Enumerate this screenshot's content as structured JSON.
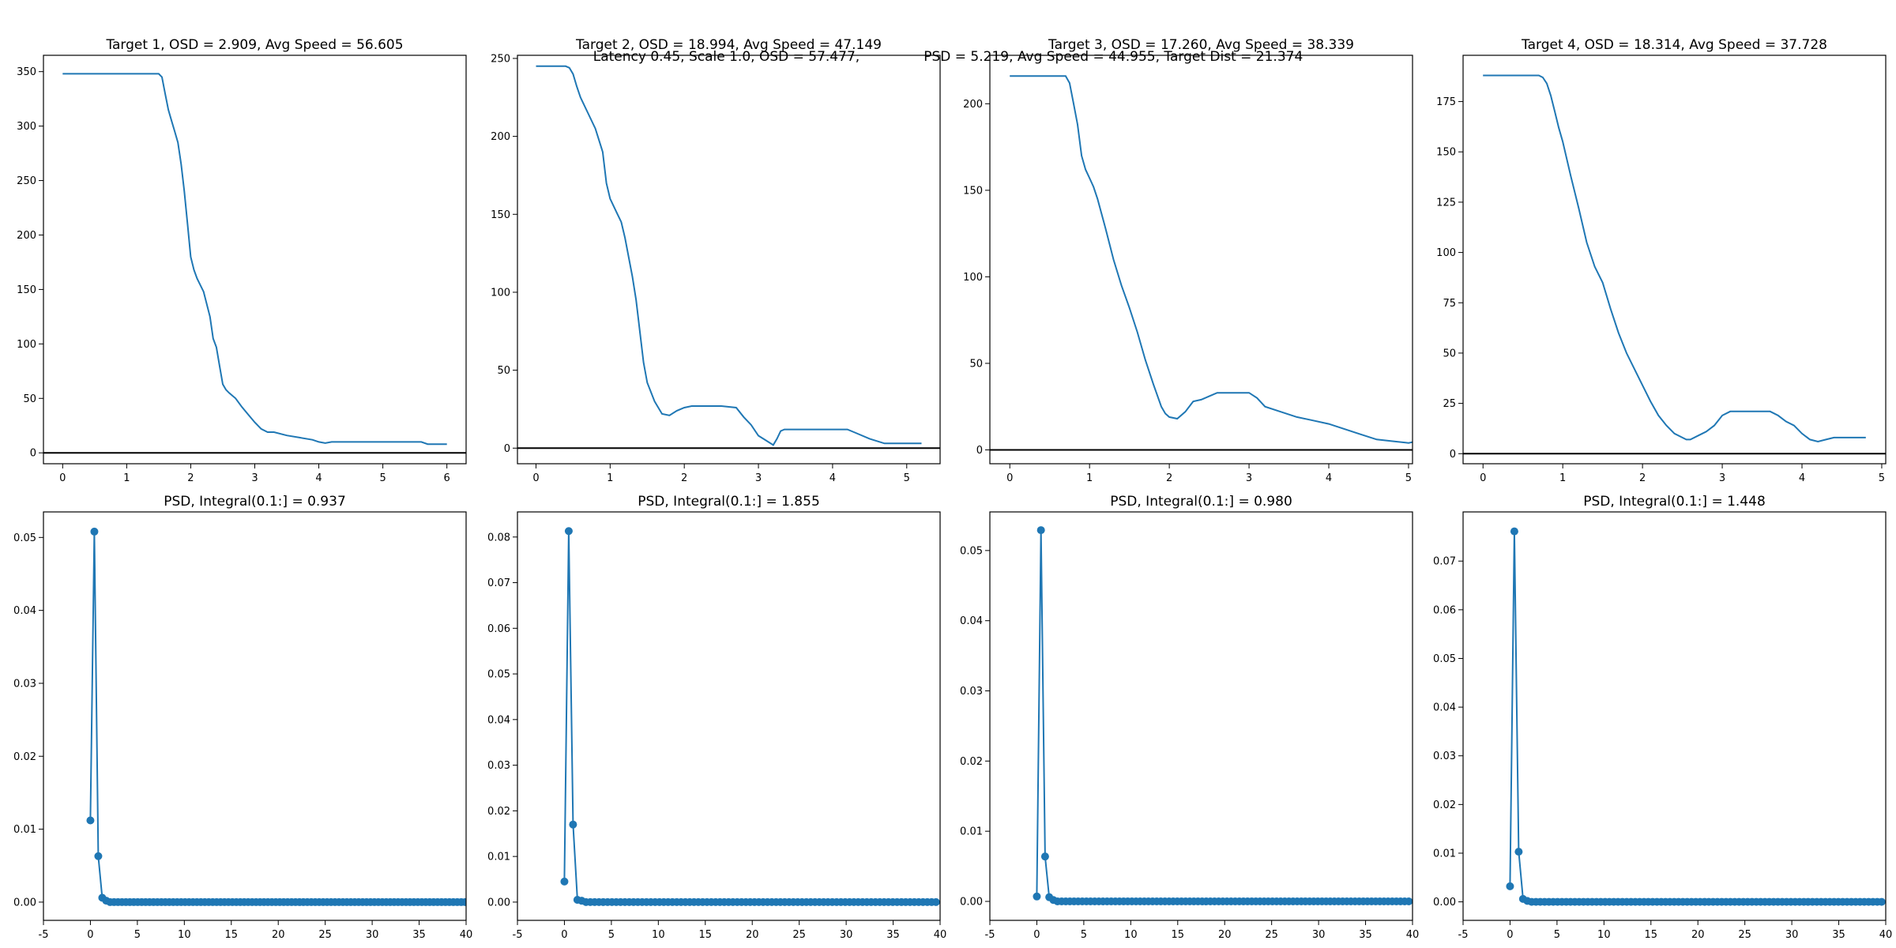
{
  "suptitle": {
    "line1": "Latency 0.45, Scale 1.0, OSD = 57.477,               PSD = 5.219, Avg Speed = 44.955, Target Dist = 21.374",
    "line2": ""
  },
  "colors": {
    "series": "#1f77b4",
    "zero_line": "#000000",
    "axes": "#000000",
    "background": "#ffffff"
  },
  "chart_data": [
    {
      "type": "line",
      "title": "Target 1, OSD = 2.909, Avg Speed = 56.605",
      "xlim": [
        -0.3,
        6.3
      ],
      "ylim": [
        -10,
        365
      ],
      "xticks": [
        0,
        1,
        2,
        3,
        4,
        5,
        6
      ],
      "yticks": [
        0,
        50,
        100,
        150,
        200,
        250,
        300,
        350
      ],
      "hline": 0,
      "series": [
        {
          "x": [
            0,
            0.3,
            0.6,
            0.9,
            1.2,
            1.5,
            1.55,
            1.6,
            1.65,
            1.7,
            1.75,
            1.8,
            1.85,
            1.9,
            1.95,
            2.0,
            2.05,
            2.1,
            2.2,
            2.3,
            2.35,
            2.4,
            2.45,
            2.5,
            2.55,
            2.6,
            2.7,
            2.8,
            2.9,
            3.0,
            3.1,
            3.2,
            3.3,
            3.5,
            3.7,
            3.9,
            4.0,
            4.1,
            4.2,
            4.4,
            4.7,
            5.0,
            5.3,
            5.6,
            5.7,
            6.0
          ],
          "y": [
            348,
            348,
            348,
            348,
            348,
            348,
            345,
            330,
            315,
            305,
            295,
            285,
            265,
            240,
            210,
            180,
            168,
            160,
            148,
            125,
            105,
            97,
            80,
            63,
            58,
            55,
            50,
            42,
            35,
            28,
            22,
            19,
            19,
            16,
            14,
            12,
            10,
            9,
            10,
            10,
            10,
            10,
            10,
            10,
            8,
            8
          ]
        }
      ]
    },
    {
      "type": "line",
      "title": "Target 2, OSD = 18.994, Avg Speed = 47.149",
      "xlim": [
        -0.25,
        5.45
      ],
      "ylim": [
        -10,
        252
      ],
      "xticks": [
        0,
        1,
        2,
        3,
        4,
        5
      ],
      "yticks": [
        0,
        50,
        100,
        150,
        200,
        250
      ],
      "hline": 0,
      "series": [
        {
          "x": [
            0,
            0.2,
            0.4,
            0.45,
            0.5,
            0.55,
            0.6,
            0.7,
            0.8,
            0.9,
            0.95,
            1.0,
            1.05,
            1.1,
            1.15,
            1.2,
            1.3,
            1.35,
            1.4,
            1.45,
            1.5,
            1.6,
            1.7,
            1.8,
            1.9,
            2.0,
            2.1,
            2.3,
            2.5,
            2.7,
            2.8,
            2.9,
            3.0,
            3.1,
            3.2,
            3.25,
            3.3,
            3.35,
            3.6,
            3.9,
            4.2,
            4.3,
            4.5,
            4.7,
            5.0,
            5.2
          ],
          "y": [
            245,
            245,
            245,
            244,
            240,
            232,
            225,
            215,
            205,
            190,
            170,
            160,
            155,
            150,
            145,
            135,
            110,
            95,
            75,
            55,
            42,
            30,
            22,
            21,
            24,
            26,
            27,
            27,
            27,
            26,
            20,
            15,
            8,
            5,
            2,
            6,
            11,
            12,
            12,
            12,
            12,
            10,
            6,
            3,
            3,
            3
          ]
        }
      ]
    },
    {
      "type": "line",
      "title": "Target 3, OSD = 17.260, Avg Speed = 38.339",
      "xlim": [
        -0.25,
        5.05
      ],
      "ylim": [
        -8,
        228
      ],
      "xticks": [
        0,
        1,
        2,
        3,
        4,
        5
      ],
      "yticks": [
        0,
        50,
        100,
        150,
        200
      ],
      "hline": 0,
      "series": [
        {
          "x": [
            0,
            0.3,
            0.6,
            0.7,
            0.75,
            0.8,
            0.85,
            0.9,
            0.95,
            1.0,
            1.05,
            1.1,
            1.2,
            1.3,
            1.4,
            1.5,
            1.6,
            1.7,
            1.8,
            1.9,
            1.95,
            2.0,
            2.1,
            2.2,
            2.3,
            2.4,
            2.5,
            2.6,
            2.8,
            3.0,
            3.1,
            3.2,
            3.4,
            3.6,
            3.8,
            4.0,
            4.2,
            4.4,
            4.6,
            4.8,
            5.0,
            5.1,
            5.5
          ],
          "y": [
            216,
            216,
            216,
            216,
            212,
            200,
            188,
            170,
            162,
            157,
            152,
            145,
            128,
            110,
            95,
            82,
            68,
            52,
            38,
            25,
            21,
            19,
            18,
            22,
            28,
            29,
            31,
            33,
            33,
            33,
            30,
            25,
            22,
            19,
            17,
            15,
            12,
            9,
            6,
            5,
            4,
            5,
            5
          ]
        }
      ]
    },
    {
      "type": "line",
      "title": "Target 4, OSD = 18.314, Avg Speed = 37.728",
      "xlim": [
        -0.25,
        5.05
      ],
      "ylim": [
        -5,
        198
      ],
      "xticks": [
        0,
        1,
        2,
        3,
        4,
        5
      ],
      "yticks": [
        0,
        25,
        50,
        75,
        100,
        125,
        150,
        175
      ],
      "hline": 0,
      "series": [
        {
          "x": [
            0,
            0.3,
            0.6,
            0.7,
            0.75,
            0.8,
            0.85,
            0.9,
            0.95,
            1.0,
            1.1,
            1.2,
            1.3,
            1.4,
            1.5,
            1.6,
            1.7,
            1.8,
            1.9,
            2.0,
            2.1,
            2.2,
            2.3,
            2.4,
            2.5,
            2.55,
            2.6,
            2.7,
            2.8,
            2.9,
            3.0,
            3.1,
            3.2,
            3.4,
            3.6,
            3.7,
            3.8,
            3.9,
            4.0,
            4.1,
            4.2,
            4.3,
            4.4,
            4.8
          ],
          "y": [
            188,
            188,
            188,
            188,
            187,
            184,
            178,
            170,
            162,
            155,
            138,
            122,
            105,
            93,
            85,
            72,
            60,
            50,
            42,
            34,
            26,
            19,
            14,
            10,
            8,
            7,
            7,
            9,
            11,
            14,
            19,
            21,
            21,
            21,
            21,
            19,
            16,
            14,
            10,
            7,
            6,
            7,
            8,
            8
          ]
        }
      ]
    },
    {
      "type": "line",
      "title": "PSD, Integral(0.1:] = 0.937",
      "xlim": [
        -5,
        40
      ],
      "ylim": [
        -0.0025,
        0.0535
      ],
      "xticks": [
        -5,
        0,
        5,
        10,
        15,
        20,
        25,
        30,
        35,
        40
      ],
      "yticks": [
        0.0,
        0.01,
        0.02,
        0.03,
        0.04,
        0.05
      ],
      "ytick_decimals": 2,
      "series": [
        {
          "x": [
            0,
            0.42,
            0.84,
            1.26,
            1.68
          ],
          "y": [
            0.0112,
            0.0508,
            0.0063,
            0.0006,
            0.0002
          ]
        }
      ],
      "tail": {
        "start": 2.1,
        "step": 0.42,
        "end": 40,
        "value": 0
      }
    },
    {
      "type": "line",
      "title": "PSD, Integral(0.1:] = 1.855",
      "xlim": [
        -5,
        40
      ],
      "ylim": [
        -0.004,
        0.0855
      ],
      "xticks": [
        -5,
        0,
        5,
        10,
        15,
        20,
        25,
        30,
        35,
        40
      ],
      "yticks": [
        0.0,
        0.01,
        0.02,
        0.03,
        0.04,
        0.05,
        0.06,
        0.07,
        0.08
      ],
      "ytick_decimals": 2,
      "series": [
        {
          "x": [
            0,
            0.46,
            0.92,
            1.38,
            1.84
          ],
          "y": [
            0.0045,
            0.0813,
            0.017,
            0.0005,
            0.0003
          ]
        }
      ],
      "tail": {
        "start": 2.3,
        "step": 0.46,
        "end": 40,
        "value": 0
      }
    },
    {
      "type": "line",
      "title": "PSD, Integral(0.1:] = 0.980",
      "xlim": [
        -5,
        40
      ],
      "ylim": [
        -0.0027,
        0.0555
      ],
      "xticks": [
        -5,
        0,
        5,
        10,
        15,
        20,
        25,
        30,
        35,
        40
      ],
      "yticks": [
        0.0,
        0.01,
        0.02,
        0.03,
        0.04,
        0.05
      ],
      "ytick_decimals": 2,
      "series": [
        {
          "x": [
            0,
            0.44,
            0.88,
            1.32,
            1.76
          ],
          "y": [
            0.0007,
            0.0529,
            0.0064,
            0.0006,
            0.0002
          ]
        }
      ],
      "tail": {
        "start": 2.2,
        "step": 0.44,
        "end": 40,
        "value": 0
      }
    },
    {
      "type": "line",
      "title": "PSD, Integral(0.1:] = 1.448",
      "xlim": [
        -5,
        40
      ],
      "ylim": [
        -0.0038,
        0.0801
      ],
      "xticks": [
        -5,
        0,
        5,
        10,
        15,
        20,
        25,
        30,
        35,
        40
      ],
      "yticks": [
        0.0,
        0.01,
        0.02,
        0.03,
        0.04,
        0.05,
        0.06,
        0.07
      ],
      "ytick_decimals": 2,
      "series": [
        {
          "x": [
            0,
            0.46,
            0.92,
            1.38,
            1.84
          ],
          "y": [
            0.0032,
            0.0761,
            0.0103,
            0.0006,
            0.0002
          ]
        }
      ],
      "tail": {
        "start": 2.3,
        "step": 0.46,
        "end": 40,
        "value": 0
      }
    }
  ]
}
